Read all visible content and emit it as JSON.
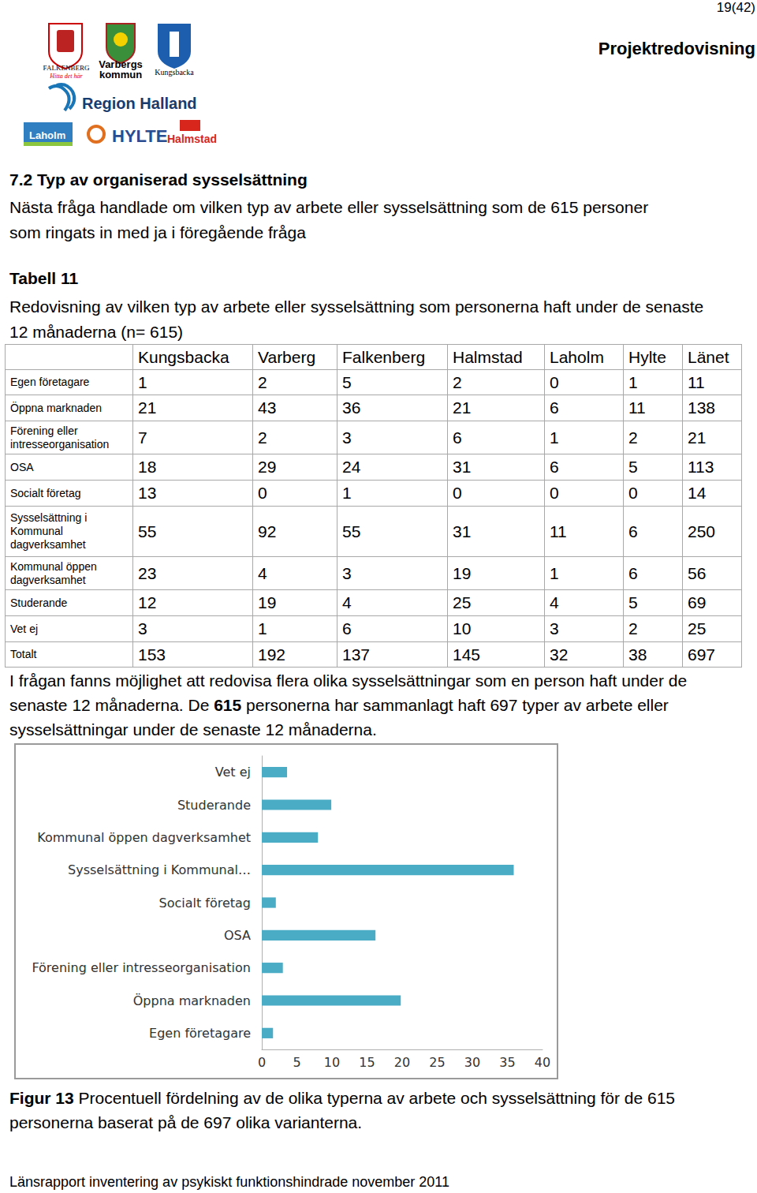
{
  "header": {
    "page": "19(42)",
    "title": "Projektredovisning",
    "logos": [
      "FALKENBERG",
      "Hitta det här",
      "Varbergs",
      "kommun",
      "Kungsbacka",
      "Region Halland",
      "Laholm",
      "HYLTE",
      "Halmstad"
    ]
  },
  "section": {
    "heading": "7.2 Typ av  organiserad sysselsättning",
    "text": "Nästa fråga handlade om vilken typ av arbete eller sysselsättning som de 615 personer som ringats in med ja i föregående fråga"
  },
  "table": {
    "title": "Tabell 11",
    "caption": "Redovisning av vilken typ av arbete eller sysselsättning som personerna haft under de senaste 12 månaderna (n= 615)",
    "columns": [
      "",
      "Kungsbacka",
      "Varberg",
      "Falkenberg",
      "Halmstad",
      "Laholm",
      "Hylte",
      "Länet"
    ],
    "rows": [
      [
        "Egen företagare",
        1,
        2,
        5,
        2,
        0,
        1,
        11
      ],
      [
        "Öppna marknaden",
        21,
        43,
        36,
        21,
        6,
        11,
        138
      ],
      [
        "Förening eller intresseorganisation",
        7,
        2,
        3,
        6,
        1,
        2,
        21
      ],
      [
        "OSA",
        18,
        29,
        24,
        31,
        6,
        5,
        113
      ],
      [
        "Socialt företag",
        13,
        0,
        1,
        0,
        0,
        0,
        14
      ],
      [
        "Sysselsättning i Kommunal dagverksamhet",
        55,
        92,
        55,
        31,
        11,
        6,
        250
      ],
      [
        "Kommunal öppen dagverksamhet",
        23,
        4,
        3,
        19,
        1,
        6,
        56
      ],
      [
        "Studerande",
        12,
        19,
        4,
        25,
        4,
        5,
        69
      ],
      [
        "Vet ej",
        3,
        1,
        6,
        10,
        3,
        2,
        25
      ],
      [
        "Totalt",
        153,
        192,
        137,
        145,
        32,
        38,
        697
      ]
    ]
  },
  "note": [
    {
      "text": "I frågan fanns möjlighet att redovisa flera olika sysselsättningar som en person haft under de senaste 12 månaderna. De "
    },
    {
      "text": "615",
      "bold": true
    },
    {
      "text": " personerna har sammanlagt haft 697 typer av arbete eller sysselsättningar under de senaste 12 månaderna."
    }
  ],
  "chart_data": {
    "type": "bar",
    "orientation": "horizontal",
    "categories": [
      "Egen företagare",
      "Öppna marknaden",
      "Förening eller intresseorganisation",
      "OSA",
      "Socialt företag",
      "Sysselsättning i Kommunal…",
      "Kommunal öppen dagverksamhet",
      "Studerande",
      "Vet ej"
    ],
    "values": [
      1.6,
      19.8,
      3.0,
      16.2,
      2.0,
      35.9,
      8.0,
      9.9,
      3.6
    ],
    "color": "#4bacc6",
    "xlim": [
      0,
      40
    ],
    "xticks": [
      0,
      5,
      10,
      15,
      20,
      25,
      30,
      35,
      40
    ],
    "grid": false
  },
  "figure_caption": [
    {
      "text": "Figur 13",
      "bold": true
    },
    {
      "text": " Procentuell fördelning av de olika typerna av arbete och sysselsättning för de 615 personerna baserat på de 697 olika varianterna."
    }
  ],
  "footer": "Länsrapport inventering av psykiskt funktionshindrade november 2011"
}
